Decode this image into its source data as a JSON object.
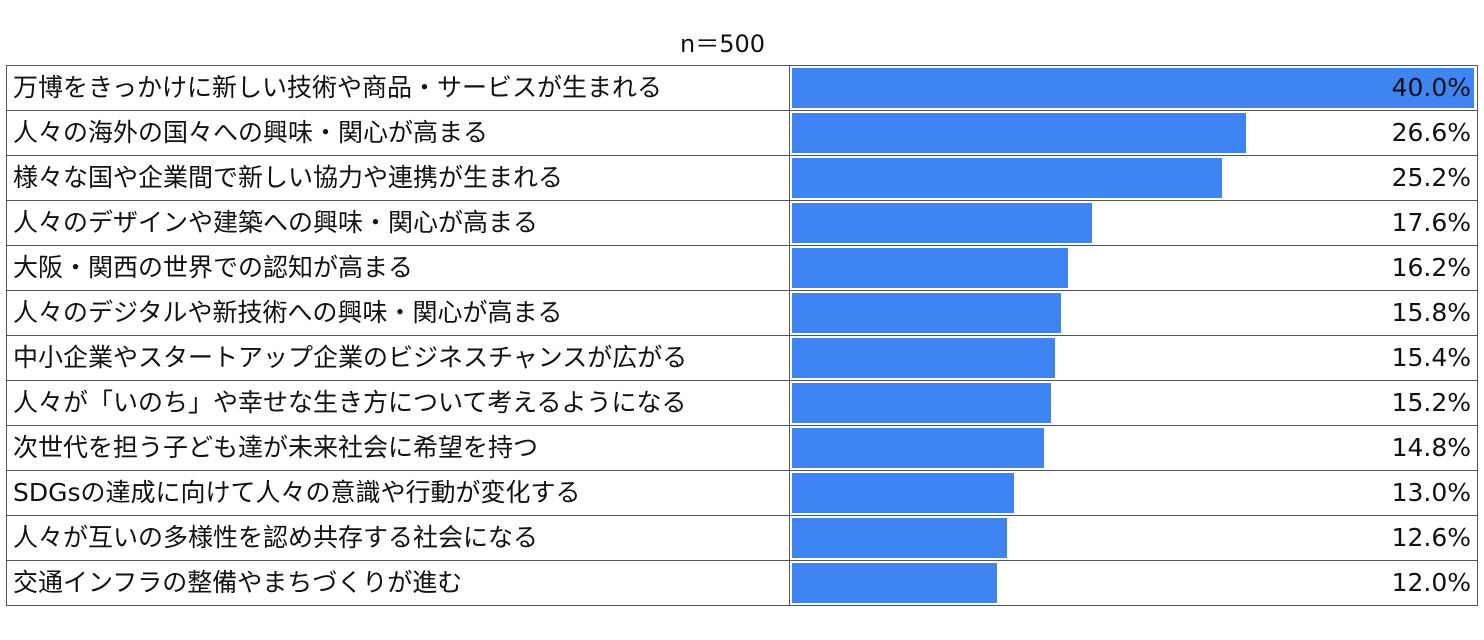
{
  "chart_data": {
    "type": "bar",
    "orientation": "horizontal",
    "sample_note": "n＝500",
    "title": "",
    "xlabel": "",
    "ylabel": "",
    "xlim": [
      0,
      40
    ],
    "grid": false,
    "legend": "none",
    "unit": "%",
    "bar_color": "#3e84f2",
    "categories": [
      "万博をきっかけに新しい技術や商品・サービスが生まれる",
      "人々の海外の国々への興味・関心が高まる",
      "様々な国や企業間で新しい協力や連携が生まれる",
      "人々のデザインや建築への興味・関心が高まる",
      "大阪・関西の世界での認知が高まる",
      "人々のデジタルや新技術への興味・関心が高まる",
      "中小企業やスタートアップ企業のビジネスチャンスが広がる",
      "人々が「いのち」や幸せな生き方について考えるようになる",
      "次世代を担う子ども達が未来社会に希望を持つ",
      "SDGsの達成に向けて人々の意識や行動が変化する",
      "人々が互いの多様性を認め共存する社会になる",
      "交通インフラの整備やまちづくりが進む"
    ],
    "values": [
      40.0,
      26.6,
      25.2,
      17.6,
      16.2,
      15.8,
      15.4,
      15.2,
      14.8,
      13.0,
      12.6,
      12.0
    ],
    "value_labels": [
      "40.0%",
      "26.6%",
      "25.2%",
      "17.6%",
      "16.2%",
      "15.8%",
      "15.4%",
      "15.2%",
      "14.8%",
      "13.0%",
      "12.6%",
      "12.0%"
    ]
  }
}
